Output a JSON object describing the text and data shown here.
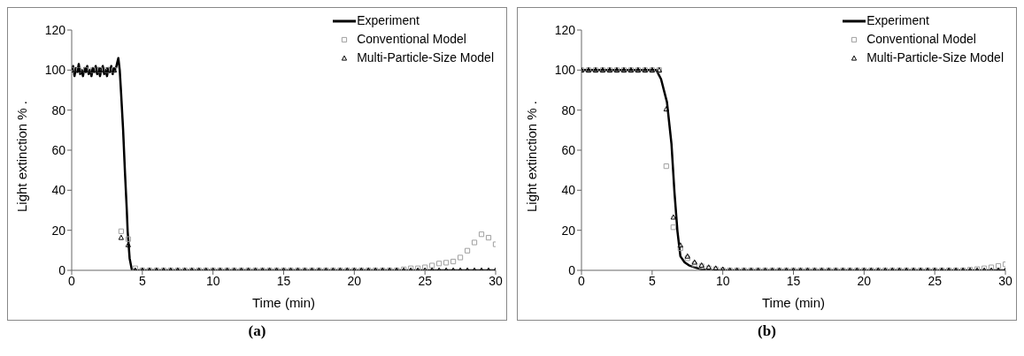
{
  "chart_data": [
    {
      "type": "scatter",
      "xlabel": "Time (min)",
      "ylabel": "Light extinction % .",
      "annotations": [
        "(a)"
      ],
      "xlim": [
        0,
        30
      ],
      "ylim": [
        0,
        120
      ],
      "xticks": [
        0,
        5,
        10,
        15,
        20,
        25,
        30
      ],
      "yticks": [
        0,
        20,
        40,
        60,
        80,
        100,
        120
      ],
      "grid": false,
      "legend": "top right",
      "series": [
        {
          "name": "Experiment",
          "type": "line",
          "color": "#000000",
          "marker": "none",
          "line_style": "solid",
          "x": [
            0,
            0.1,
            0.2,
            0.3,
            0.4,
            0.5,
            0.6,
            0.7,
            0.8,
            0.9,
            1,
            1.1,
            1.2,
            1.3,
            1.4,
            1.5,
            1.6,
            1.7,
            1.8,
            1.9,
            2,
            2.1,
            2.2,
            2.3,
            2.4,
            2.5,
            2.6,
            2.7,
            2.8,
            2.9,
            3,
            3.1,
            3.2,
            3.3,
            3.4,
            3.5,
            3.64,
            3.77,
            3.9,
            3.96,
            4.1,
            4.25,
            4.5,
            30
          ],
          "values": [
            100,
            102,
            97,
            101,
            99,
            103,
            98,
            100,
            97,
            101,
            99,
            102,
            98,
            100,
            97,
            101,
            99,
            102,
            98,
            101,
            97,
            100,
            102,
            98,
            100,
            97,
            101,
            99,
            102,
            98,
            101,
            100,
            103,
            106,
            100,
            88,
            70,
            49,
            30,
            19.5,
            6,
            0.5,
            0,
            0
          ]
        },
        {
          "name": "Conventional Model",
          "color": "#a0a0a0",
          "marker": "square",
          "x": [
            0,
            0.5,
            1,
            1.5,
            2,
            2.5,
            3,
            3.5,
            4,
            4.5,
            5,
            5.5,
            6,
            6.5,
            7,
            7.5,
            8,
            8.5,
            9,
            9.5,
            10,
            10.5,
            11,
            11.5,
            12,
            12.5,
            13,
            13.5,
            14,
            14.5,
            15,
            15.5,
            16,
            16.5,
            17,
            17.5,
            18,
            18.5,
            19,
            19.5,
            20,
            20.5,
            21,
            21.5,
            22,
            22.5,
            23,
            23.5,
            24,
            24.5,
            25,
            25.5,
            26,
            26.5,
            27,
            27.5,
            28,
            28.5,
            29,
            29.5,
            30
          ],
          "values": [
            100,
            100,
            100,
            100,
            100,
            100,
            100,
            19.5,
            15.6,
            1,
            0,
            0,
            0,
            0,
            0,
            0,
            0,
            0,
            0,
            0,
            0,
            0,
            0,
            0,
            0,
            0,
            0,
            0,
            0,
            0,
            0,
            0,
            0,
            0,
            0,
            0,
            0,
            0,
            0,
            0,
            0,
            0,
            0,
            0,
            0,
            0,
            0,
            0.5,
            1,
            1,
            1.5,
            2.4,
            3.4,
            3.8,
            4.4,
            6.4,
            9.8,
            13.9,
            18,
            16.3,
            13
          ]
        },
        {
          "name": "Multi-Particle-Size Model",
          "color": "#000000",
          "marker": "triangle",
          "x": [
            0,
            0.5,
            1,
            1.5,
            2,
            2.5,
            3,
            3.5,
            4,
            4.5,
            5,
            5.5,
            6,
            6.5,
            7,
            7.5,
            8,
            8.5,
            9,
            9.5,
            10,
            10.5,
            11,
            11.5,
            12,
            12.5,
            13,
            13.5,
            14,
            14.5,
            15,
            15.5,
            16,
            16.5,
            17,
            17.5,
            18,
            18.5,
            19,
            19.5,
            20,
            20.5,
            21,
            21.5,
            22,
            22.5,
            23,
            23.5,
            24,
            24.5,
            25,
            25.5,
            26,
            26.5,
            27,
            27.5,
            28,
            28.5,
            29,
            29.5,
            30
          ],
          "values": [
            100,
            100,
            100,
            100,
            100,
            100,
            100,
            16.3,
            12.7,
            0,
            0,
            0,
            0,
            0,
            0,
            0,
            0,
            0,
            0,
            0,
            0,
            0,
            0,
            0,
            0,
            0,
            0,
            0,
            0,
            0,
            0,
            0,
            0,
            0,
            0,
            0,
            0,
            0,
            0,
            0,
            0,
            0,
            0,
            0,
            0,
            0,
            0,
            0,
            0,
            0,
            0,
            0,
            0,
            0,
            0,
            0,
            0,
            0,
            0,
            0,
            0
          ]
        }
      ]
    },
    {
      "type": "scatter",
      "xlabel": "Time (min)",
      "ylabel": "Light extinction % .",
      "annotations": [
        "(b)"
      ],
      "xlim": [
        0,
        30
      ],
      "ylim": [
        0,
        120
      ],
      "xticks": [
        0,
        5,
        10,
        15,
        20,
        25,
        30
      ],
      "yticks": [
        0,
        20,
        40,
        60,
        80,
        100,
        120
      ],
      "grid": false,
      "legend": "top right",
      "series": [
        {
          "name": "Experiment",
          "type": "line",
          "color": "#000000",
          "marker": "none",
          "line_style": "solid",
          "x": [
            0,
            5.3,
            5.63,
            6.05,
            6.37,
            6.58,
            6.79,
            7,
            7.3,
            7.6,
            8,
            8.5,
            9,
            9.5,
            30
          ],
          "values": [
            100,
            100,
            95.5,
            84,
            63,
            39,
            19.6,
            7,
            4,
            2.5,
            1.5,
            0.5,
            0,
            0,
            0
          ]
        },
        {
          "name": "Conventional Model",
          "color": "#a0a0a0",
          "marker": "square",
          "x": [
            0,
            0.5,
            1,
            1.5,
            2,
            2.5,
            3,
            3.5,
            4,
            4.5,
            5,
            5.5,
            6,
            6.5,
            7,
            7.5,
            8,
            8.5,
            9,
            9.5,
            10,
            10.5,
            11,
            11.5,
            12,
            12.5,
            13,
            13.5,
            14,
            14.5,
            15,
            15.5,
            16,
            16.5,
            17,
            17.5,
            18,
            18.5,
            19,
            19.5,
            20,
            20.5,
            21,
            21.5,
            22,
            22.5,
            23,
            23.5,
            24,
            24.5,
            25,
            25.5,
            26,
            26.5,
            27,
            27.5,
            28,
            28.5,
            29,
            29.5,
            30
          ],
          "values": [
            100,
            100,
            100,
            100,
            100,
            100,
            100,
            100,
            100,
            100,
            100,
            100,
            52,
            21.5,
            11,
            6,
            3,
            2,
            1,
            0.5,
            0,
            0,
            0,
            0,
            0,
            0,
            0,
            0,
            0,
            0,
            0,
            0,
            0,
            0,
            0,
            0,
            0,
            0,
            0,
            0,
            0,
            0,
            0,
            0,
            0,
            0,
            0,
            0,
            0,
            0,
            0,
            0,
            0,
            0,
            0,
            0.3,
            0.6,
            1,
            1.5,
            2.2,
            3
          ]
        },
        {
          "name": "Multi-Particle-Size Model",
          "color": "#000000",
          "marker": "triangle",
          "x": [
            0,
            0.5,
            1,
            1.5,
            2,
            2.5,
            3,
            3.5,
            4,
            4.5,
            5,
            5.5,
            6,
            6.5,
            7,
            7.5,
            8,
            8.5,
            9,
            9.5,
            10,
            10.5,
            11,
            11.5,
            12,
            12.5,
            13,
            13.5,
            14,
            14.5,
            15,
            15.5,
            16,
            16.5,
            17,
            17.5,
            18,
            18.5,
            19,
            19.5,
            20,
            20.5,
            21,
            21.5,
            22,
            22.5,
            23,
            23.5,
            24,
            24.5,
            25,
            25.5,
            26,
            26.5,
            27,
            27.5,
            28,
            28.5,
            29,
            29.5,
            30
          ],
          "values": [
            100,
            100,
            100,
            100,
            100,
            100,
            100,
            100,
            100,
            100,
            100,
            100,
            80.5,
            26.5,
            12.5,
            7,
            4,
            2.5,
            1.5,
            1,
            0.5,
            0,
            0,
            0,
            0,
            0,
            0,
            0,
            0,
            0,
            0,
            0,
            0,
            0,
            0,
            0,
            0,
            0,
            0,
            0,
            0,
            0,
            0,
            0,
            0,
            0,
            0,
            0,
            0,
            0,
            0,
            0,
            0,
            0,
            0,
            0,
            0,
            0,
            0,
            0,
            0
          ]
        }
      ]
    }
  ]
}
